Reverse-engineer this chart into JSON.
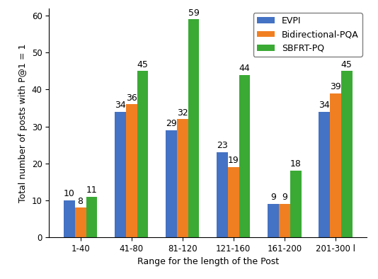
{
  "categories": [
    "1-40",
    "41-80",
    "81-120",
    "121-160",
    "161-200",
    "201-300 l"
  ],
  "evpi": [
    10,
    34,
    29,
    23,
    9,
    34
  ],
  "bidirectional_pqa": [
    8,
    36,
    32,
    19,
    9,
    39
  ],
  "sbfrt_pq": [
    11,
    45,
    59,
    44,
    18,
    45
  ],
  "evpi_color": "#4472c4",
  "bidirectional_pqa_color": "#f07f22",
  "sbfrt_pq_color": "#3aaa35",
  "legend_labels": [
    "EVPI",
    "Bidirectional-PQA",
    "SBFRT-PQ"
  ],
  "xlabel": "Range for the length of the Post",
  "ylabel": "Total number of posts with P@1 = 1",
  "ylim": [
    0,
    62
  ],
  "yticks": [
    0,
    10,
    20,
    30,
    40,
    50,
    60
  ],
  "bar_width": 0.22,
  "label_fontsize": 9,
  "tick_fontsize": 8.5,
  "annotation_fontsize": 9,
  "legend_fontsize": 9
}
